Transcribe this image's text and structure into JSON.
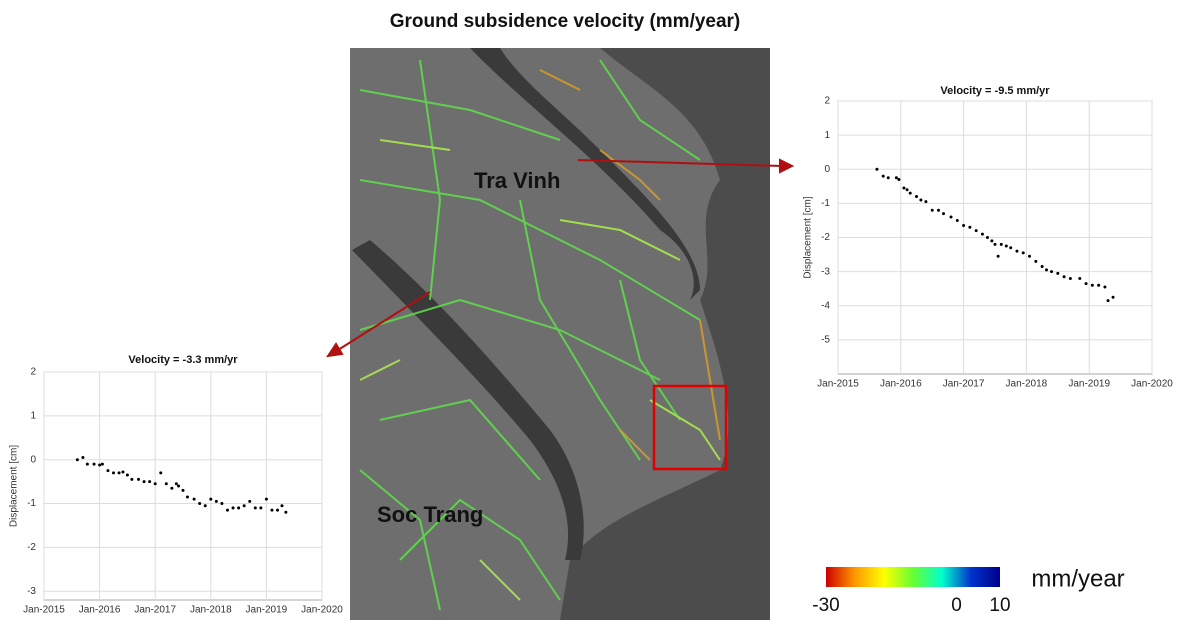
{
  "title": "Ground subsidence velocity (mm/year)",
  "map": {
    "labels": [
      "Tra Vinh",
      "Soc Trang"
    ]
  },
  "colorbar": {
    "min": -30,
    "max": 10,
    "ticks": [
      -30,
      0,
      10
    ],
    "unit": "mm/year",
    "colors": [
      "#cc0000",
      "#ff9900",
      "#ffff00",
      "#66ff33",
      "#00ffcc",
      "#0033cc",
      "#00008b"
    ]
  },
  "chart_data": [
    {
      "type": "scatter",
      "title": "Velocity = -9.5 mm/yr",
      "y_label": "Displacement [cm]",
      "color": "#000000",
      "grid": true,
      "xlim": [
        2015,
        2020
      ],
      "xticks": [
        {
          "value": 2015,
          "label": "Jan-2015"
        },
        {
          "value": 2016,
          "label": "Jan-2016"
        },
        {
          "value": 2017,
          "label": "Jan-2017"
        },
        {
          "value": 2018,
          "label": "Jan-2018"
        },
        {
          "value": 2019,
          "label": "Jan-2019"
        },
        {
          "value": 2020,
          "label": "Jan-2020"
        }
      ],
      "ylim": [
        -6,
        2
      ],
      "yticks": [
        -5,
        -4,
        -3,
        -2,
        -1,
        0,
        1,
        2
      ],
      "x": [
        2015.62,
        2015.72,
        2015.8,
        2015.93,
        2015.97,
        2016.05,
        2016.1,
        2016.15,
        2016.25,
        2016.32,
        2016.4,
        2016.5,
        2016.6,
        2016.68,
        2016.8,
        2016.9,
        2017.0,
        2017.1,
        2017.2,
        2017.3,
        2017.38,
        2017.45,
        2017.5,
        2017.55,
        2017.6,
        2017.68,
        2017.75,
        2017.85,
        2017.95,
        2018.05,
        2018.15,
        2018.25,
        2018.32,
        2018.4,
        2018.5,
        2018.6,
        2018.7,
        2018.85,
        2018.95,
        2019.05,
        2019.15,
        2019.25,
        2019.3,
        2019.38
      ],
      "values": [
        0,
        -0.2,
        -0.25,
        -0.25,
        -0.3,
        -0.55,
        -0.6,
        -0.7,
        -0.8,
        -0.9,
        -0.95,
        -1.2,
        -1.2,
        -1.3,
        -1.4,
        -1.5,
        -1.65,
        -1.7,
        -1.8,
        -1.9,
        -2.0,
        -2.1,
        -2.2,
        -2.55,
        -2.2,
        -2.25,
        -2.3,
        -2.4,
        -2.45,
        -2.55,
        -2.7,
        -2.85,
        -2.95,
        -3.0,
        -3.05,
        -3.15,
        -3.2,
        -3.2,
        -3.35,
        -3.4,
        -3.4,
        -3.45,
        -3.85,
        -3.75
      ]
    },
    {
      "type": "scatter",
      "title": "Velocity = -3.3 mm/yr",
      "y_label": "Displacement [cm]",
      "color": "#000000",
      "grid": true,
      "xlim": [
        2015,
        2020
      ],
      "xticks": [
        {
          "value": 2015,
          "label": "Jan-2015"
        },
        {
          "value": 2016,
          "label": "Jan-2016"
        },
        {
          "value": 2017,
          "label": "Jan-2017"
        },
        {
          "value": 2018,
          "label": "Jan-2018"
        },
        {
          "value": 2019,
          "label": "Jan-2019"
        },
        {
          "value": 2020,
          "label": "Jan-2020"
        }
      ],
      "ylim": [
        -3.2,
        2
      ],
      "yticks": [
        -3,
        -2,
        -1,
        0,
        1,
        2
      ],
      "x": [
        2015.6,
        2015.7,
        2015.78,
        2015.9,
        2016.0,
        2016.05,
        2016.15,
        2016.25,
        2016.35,
        2016.42,
        2016.5,
        2016.58,
        2016.7,
        2016.8,
        2016.9,
        2017.0,
        2017.1,
        2017.2,
        2017.3,
        2017.38,
        2017.42,
        2017.5,
        2017.58,
        2017.7,
        2017.8,
        2017.9,
        2018.0,
        2018.1,
        2018.2,
        2018.3,
        2018.4,
        2018.5,
        2018.6,
        2018.7,
        2018.8,
        2018.9,
        2019.0,
        2019.1,
        2019.2,
        2019.28,
        2019.35
      ],
      "values": [
        0,
        0.05,
        -0.1,
        -0.1,
        -0.12,
        -0.1,
        -0.25,
        -0.3,
        -0.3,
        -0.28,
        -0.35,
        -0.45,
        -0.45,
        -0.5,
        -0.5,
        -0.55,
        -0.3,
        -0.55,
        -0.65,
        -0.55,
        -0.6,
        -0.7,
        -0.85,
        -0.9,
        -1.0,
        -1.05,
        -0.9,
        -0.95,
        -1.0,
        -1.15,
        -1.1,
        -1.1,
        -1.05,
        -0.95,
        -1.1,
        -1.1,
        -0.9,
        -1.15,
        -1.15,
        -1.05,
        -1.2
      ]
    }
  ]
}
